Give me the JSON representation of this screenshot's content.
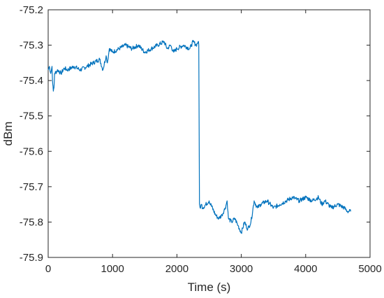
{
  "chart_data": {
    "type": "line",
    "title": "",
    "xlabel": "Time (s)",
    "ylabel": "dBm",
    "xlim": [
      0,
      5000
    ],
    "ylim": [
      -75.9,
      -75.2
    ],
    "x_ticks": [
      0,
      1000,
      2000,
      3000,
      4000,
      5000
    ],
    "x_tick_labels": [
      "0",
      "1000",
      "2000",
      "3000",
      "4000",
      "5000"
    ],
    "y_ticks": [
      -75.9,
      -75.8,
      -75.7,
      -75.6,
      -75.5,
      -75.4,
      -75.3,
      -75.2
    ],
    "y_tick_labels": [
      "-75.9",
      "-75.8",
      "-75.7",
      "-75.6",
      "-75.5",
      "-75.4",
      "-75.3",
      "-75.2"
    ],
    "grid": false,
    "box": true,
    "line_color": "#0072BD",
    "series": [
      {
        "x": [
          0,
          20,
          40,
          60,
          70,
          80,
          90,
          100,
          150,
          200,
          250,
          300,
          400,
          500,
          600,
          700,
          800,
          850,
          900,
          920,
          950,
          1000,
          1100,
          1200,
          1300,
          1400,
          1500,
          1600,
          1700,
          1800,
          1850,
          1900,
          1950,
          2000,
          2100,
          2200,
          2250,
          2300,
          2330,
          2340,
          2350,
          2360,
          2380,
          2400,
          2500,
          2600,
          2650,
          2700,
          2750,
          2780,
          2800,
          2850,
          2900,
          2950,
          3000,
          3050,
          3100,
          3150,
          3200,
          3250,
          3300,
          3400,
          3500,
          3600,
          3700,
          3800,
          3900,
          4000,
          4100,
          4200,
          4250,
          4300,
          4400,
          4500,
          4600,
          4650,
          4700
        ],
        "y": [
          -75.37,
          -75.36,
          -75.38,
          -75.36,
          -75.41,
          -75.43,
          -75.42,
          -75.38,
          -75.37,
          -75.38,
          -75.365,
          -75.37,
          -75.36,
          -75.37,
          -75.36,
          -75.35,
          -75.34,
          -75.37,
          -75.33,
          -75.35,
          -75.31,
          -75.32,
          -75.31,
          -75.3,
          -75.31,
          -75.3,
          -75.32,
          -75.31,
          -75.3,
          -75.29,
          -75.31,
          -75.3,
          -75.32,
          -75.31,
          -75.3,
          -75.31,
          -75.29,
          -75.3,
          -75.29,
          -75.3,
          -75.75,
          -75.76,
          -75.75,
          -75.76,
          -75.74,
          -75.78,
          -75.79,
          -75.78,
          -75.76,
          -75.74,
          -75.79,
          -75.8,
          -75.79,
          -75.81,
          -75.83,
          -75.8,
          -75.82,
          -75.8,
          -75.74,
          -75.76,
          -75.75,
          -75.74,
          -75.76,
          -75.75,
          -75.74,
          -75.73,
          -75.74,
          -75.73,
          -75.74,
          -75.73,
          -75.75,
          -75.74,
          -75.76,
          -75.75,
          -75.76,
          -75.77,
          -75.77
        ]
      }
    ]
  }
}
